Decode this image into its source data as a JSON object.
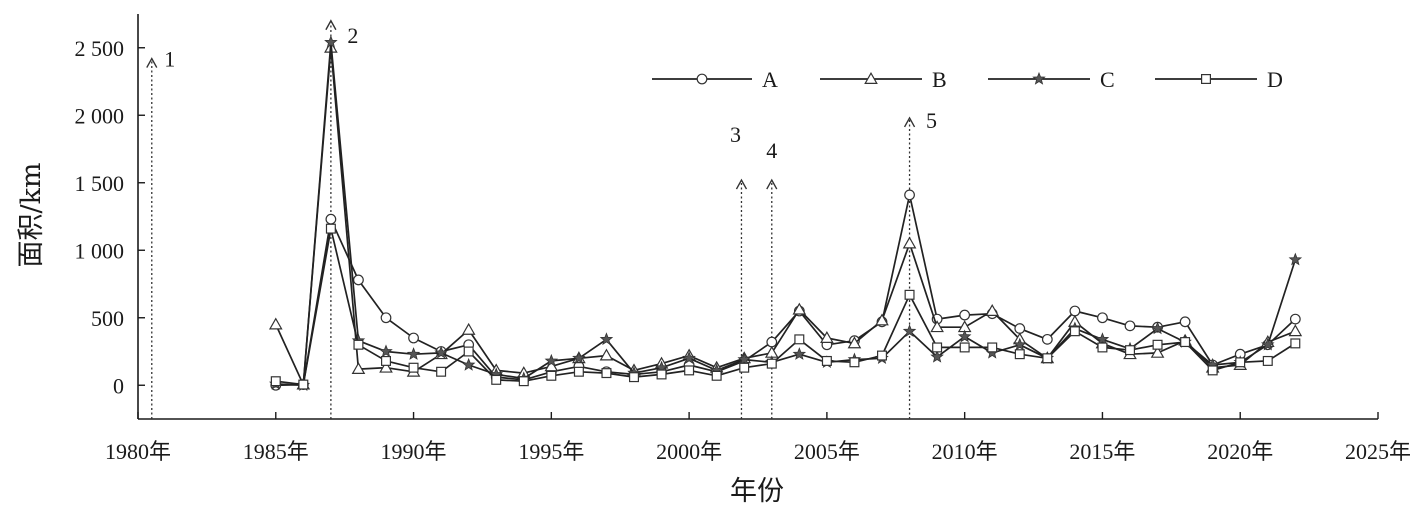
{
  "chart_data": {
    "type": "line",
    "xlabel": "年份",
    "ylabel": "面积/km",
    "xlim": [
      1980,
      2025
    ],
    "ylim": [
      -250,
      2750
    ],
    "x_ticks": [
      {
        "value": 1980,
        "label": "1980年"
      },
      {
        "value": 1985,
        "label": "1985年"
      },
      {
        "value": 1990,
        "label": "1990年"
      },
      {
        "value": 1995,
        "label": "1995年"
      },
      {
        "value": 2000,
        "label": "2000年"
      },
      {
        "value": 2005,
        "label": "2005年"
      },
      {
        "value": 2010,
        "label": "2010年"
      },
      {
        "value": 2015,
        "label": "2015年"
      },
      {
        "value": 2020,
        "label": "2020年"
      },
      {
        "value": 2025,
        "label": "2025年"
      }
    ],
    "y_ticks": [
      {
        "value": 0,
        "label": "0"
      },
      {
        "value": 500,
        "label": "500"
      },
      {
        "value": 1000,
        "label": "1 000"
      },
      {
        "value": 1500,
        "label": "1 500"
      },
      {
        "value": 2000,
        "label": "2 000"
      },
      {
        "value": 2500,
        "label": "2 500"
      }
    ],
    "legend_position": "top-right",
    "series": [
      {
        "name": "A",
        "marker": "circle",
        "x": [
          1985,
          1986,
          1987,
          1988,
          1989,
          1990,
          1991,
          1992,
          1993,
          1994,
          1995,
          1996,
          1997,
          1998,
          1999,
          2000,
          2001,
          2002,
          2003,
          2004,
          2005,
          2006,
          2007,
          2008,
          2009,
          2010,
          2011,
          2012,
          2013,
          2014,
          2015,
          2016,
          2017,
          2018,
          2019,
          2020,
          2021,
          2022
        ],
        "values": [
          0,
          5,
          1230,
          780,
          500,
          350,
          250,
          300,
          60,
          40,
          100,
          140,
          100,
          80,
          100,
          150,
          100,
          180,
          320,
          550,
          300,
          330,
          470,
          1410,
          490,
          520,
          530,
          420,
          340,
          550,
          500,
          440,
          430,
          470,
          150,
          230,
          300,
          490
        ]
      },
      {
        "name": "B",
        "marker": "triangle",
        "x": [
          1985,
          1986,
          1987,
          1988,
          1989,
          1990,
          1991,
          1992,
          1993,
          1994,
          1995,
          1996,
          1997,
          1998,
          1999,
          2000,
          2001,
          2002,
          2003,
          2004,
          2005,
          2006,
          2007,
          2008,
          2009,
          2010,
          2011,
          2012,
          2013,
          2014,
          2015,
          2016,
          2017,
          2018,
          2019,
          2020,
          2021,
          2022
        ],
        "values": [
          450,
          5,
          2500,
          120,
          130,
          100,
          230,
          410,
          110,
          90,
          140,
          200,
          220,
          110,
          160,
          220,
          130,
          200,
          240,
          560,
          350,
          310,
          480,
          1050,
          430,
          430,
          550,
          340,
          200,
          470,
          310,
          230,
          240,
          330,
          130,
          150,
          320,
          400
        ]
      },
      {
        "name": "C",
        "marker": "star",
        "x": [
          1985,
          1986,
          1987,
          1988,
          1989,
          1990,
          1991,
          1992,
          1993,
          1994,
          1995,
          1996,
          1997,
          1998,
          1999,
          2000,
          2001,
          2002,
          2003,
          2004,
          2005,
          2006,
          2007,
          2008,
          2009,
          2010,
          2011,
          2012,
          2013,
          2014,
          2015,
          2016,
          2017,
          2018,
          2019,
          2020,
          2021,
          2022
        ],
        "values": [
          10,
          0,
          2540,
          330,
          250,
          230,
          240,
          150,
          80,
          50,
          180,
          200,
          340,
          90,
          130,
          200,
          110,
          190,
          170,
          230,
          170,
          190,
          200,
          400,
          210,
          360,
          240,
          300,
          200,
          420,
          340,
          270,
          420,
          320,
          150,
          170,
          300,
          930
        ]
      },
      {
        "name": "D",
        "marker": "square",
        "x": [
          1985,
          1986,
          1987,
          1988,
          1989,
          1990,
          1991,
          1992,
          1993,
          1994,
          1995,
          1996,
          1997,
          1998,
          1999,
          2000,
          2001,
          2002,
          2003,
          2004,
          2005,
          2006,
          2007,
          2008,
          2009,
          2010,
          2011,
          2012,
          2013,
          2014,
          2015,
          2016,
          2017,
          2018,
          2019,
          2020,
          2021,
          2022
        ],
        "values": [
          30,
          5,
          1160,
          300,
          180,
          130,
          100,
          250,
          40,
          30,
          70,
          100,
          90,
          60,
          80,
          110,
          70,
          130,
          160,
          340,
          180,
          170,
          220,
          670,
          280,
          280,
          280,
          230,
          200,
          400,
          280,
          260,
          300,
          320,
          110,
          170,
          180,
          310
        ]
      }
    ],
    "events": [
      {
        "label": "1",
        "x": 1980.5,
        "y_top": 2420
      },
      {
        "label": "2",
        "x": 1987,
        "y_top": 2700
      },
      {
        "label": "3",
        "x": 2001.9,
        "y_top": 1520
      },
      {
        "label": "4",
        "x": 2003,
        "y_top": 1520
      },
      {
        "label": "5",
        "x": 2008,
        "y_top": 1980
      }
    ]
  }
}
